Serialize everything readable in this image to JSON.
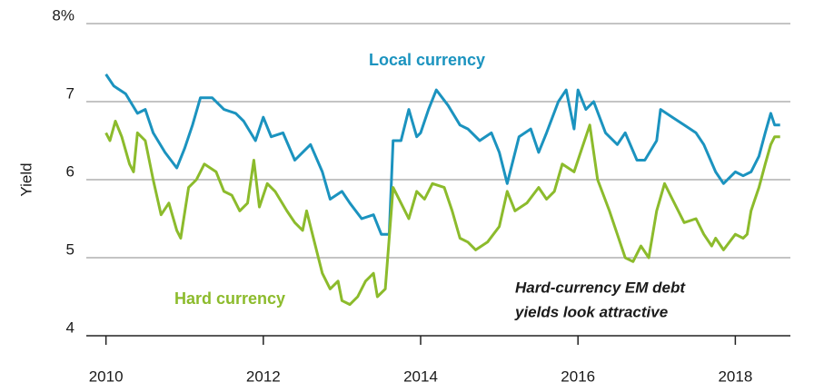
{
  "chart_data": {
    "type": "line",
    "ylabel": "Yield",
    "ylim": [
      4,
      8
    ],
    "yticks": [
      4,
      5,
      6,
      7,
      {
        "value": 8,
        "label": "8%"
      }
    ],
    "xlim": [
      2009.75,
      2018.7
    ],
    "xticks": [
      2010,
      2012,
      2014,
      2016,
      2018
    ],
    "grid": true,
    "annotation": [
      "Hard-currency EM debt",
      "yields look attractive"
    ],
    "series": [
      {
        "name": "Local currency",
        "color": "#1b93bf",
        "x": [
          2010.0,
          2010.1,
          2010.25,
          2010.4,
          2010.5,
          2010.6,
          2010.75,
          2010.9,
          2011.0,
          2011.1,
          2011.2,
          2011.35,
          2011.5,
          2011.65,
          2011.75,
          2011.9,
          2012.0,
          2012.1,
          2012.25,
          2012.4,
          2012.5,
          2012.6,
          2012.75,
          2012.85,
          2013.0,
          2013.1,
          2013.25,
          2013.4,
          2013.5,
          2013.6,
          2013.65,
          2013.75,
          2013.85,
          2013.95,
          2014.0,
          2014.1,
          2014.2,
          2014.35,
          2014.5,
          2014.6,
          2014.75,
          2014.9,
          2015.0,
          2015.1,
          2015.25,
          2015.4,
          2015.5,
          2015.6,
          2015.75,
          2015.85,
          2015.95,
          2016.0,
          2016.1,
          2016.2,
          2016.35,
          2016.5,
          2016.6,
          2016.75,
          2016.85,
          2017.0,
          2017.05,
          2017.2,
          2017.35,
          2017.5,
          2017.6,
          2017.75,
          2017.85,
          2018.0,
          2018.1,
          2018.2,
          2018.3,
          2018.38,
          2018.45,
          2018.5,
          2018.57
        ],
        "values": [
          7.35,
          7.2,
          7.1,
          6.85,
          6.9,
          6.6,
          6.35,
          6.15,
          6.4,
          6.7,
          7.05,
          7.05,
          6.9,
          6.85,
          6.75,
          6.5,
          6.8,
          6.55,
          6.6,
          6.25,
          6.35,
          6.45,
          6.1,
          5.75,
          5.85,
          5.7,
          5.5,
          5.55,
          5.3,
          5.3,
          6.5,
          6.5,
          6.9,
          6.55,
          6.6,
          6.9,
          7.15,
          6.95,
          6.7,
          6.65,
          6.5,
          6.6,
          6.35,
          5.95,
          6.55,
          6.65,
          6.35,
          6.6,
          7.0,
          7.15,
          6.65,
          7.15,
          6.9,
          7.0,
          6.6,
          6.45,
          6.6,
          6.25,
          6.25,
          6.5,
          6.9,
          6.8,
          6.7,
          6.6,
          6.45,
          6.1,
          5.95,
          6.1,
          6.05,
          6.1,
          6.3,
          6.6,
          6.85,
          6.7,
          6.7
        ]
      },
      {
        "name": "Hard currency",
        "color": "#8cbb2c",
        "x": [
          2010.0,
          2010.05,
          2010.12,
          2010.2,
          2010.3,
          2010.35,
          2010.4,
          2010.5,
          2010.6,
          2010.7,
          2010.8,
          2010.9,
          2010.95,
          2011.05,
          2011.15,
          2011.25,
          2011.4,
          2011.5,
          2011.6,
          2011.7,
          2011.8,
          2011.88,
          2011.95,
          2012.05,
          2012.15,
          2012.3,
          2012.4,
          2012.5,
          2012.55,
          2012.65,
          2012.75,
          2012.85,
          2012.95,
          2013.0,
          2013.1,
          2013.2,
          2013.3,
          2013.4,
          2013.45,
          2013.55,
          2013.65,
          2013.75,
          2013.85,
          2013.95,
          2014.05,
          2014.15,
          2014.3,
          2014.4,
          2014.5,
          2014.6,
          2014.7,
          2014.85,
          2015.0,
          2015.1,
          2015.2,
          2015.35,
          2015.5,
          2015.6,
          2015.7,
          2015.8,
          2015.95,
          2016.05,
          2016.15,
          2016.25,
          2016.4,
          2016.5,
          2016.6,
          2016.7,
          2016.8,
          2016.9,
          2017.0,
          2017.1,
          2017.2,
          2017.35,
          2017.5,
          2017.6,
          2017.7,
          2017.75,
          2017.85,
          2018.0,
          2018.1,
          2018.15,
          2018.2,
          2018.25,
          2018.3,
          2018.38,
          2018.45,
          2018.5,
          2018.57
        ],
        "values": [
          6.6,
          6.5,
          6.75,
          6.55,
          6.2,
          6.1,
          6.6,
          6.5,
          6.0,
          5.55,
          5.7,
          5.35,
          5.25,
          5.9,
          6.0,
          6.2,
          6.1,
          5.85,
          5.8,
          5.6,
          5.7,
          6.25,
          5.65,
          5.95,
          5.85,
          5.6,
          5.45,
          5.35,
          5.6,
          5.2,
          4.8,
          4.6,
          4.7,
          4.45,
          4.4,
          4.5,
          4.7,
          4.8,
          4.5,
          4.6,
          5.9,
          5.7,
          5.5,
          5.85,
          5.75,
          5.95,
          5.9,
          5.6,
          5.25,
          5.2,
          5.1,
          5.2,
          5.4,
          5.85,
          5.6,
          5.7,
          5.9,
          5.75,
          5.85,
          6.2,
          6.1,
          6.4,
          6.7,
          6.0,
          5.6,
          5.3,
          5.0,
          4.95,
          5.15,
          5.0,
          5.6,
          5.95,
          5.75,
          5.45,
          5.5,
          5.3,
          5.15,
          5.25,
          5.1,
          5.3,
          5.25,
          5.3,
          5.6,
          5.75,
          5.9,
          6.2,
          6.45,
          6.55,
          6.55
        ]
      }
    ]
  }
}
